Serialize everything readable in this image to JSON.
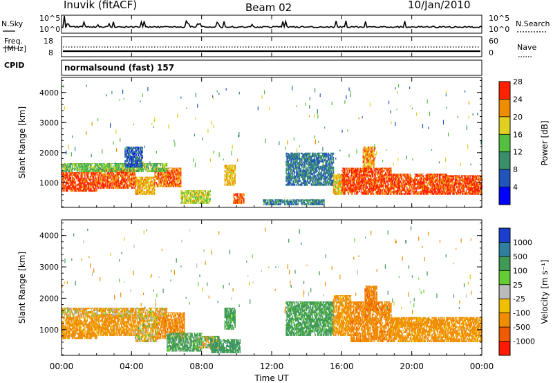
{
  "header": {
    "station": "Inuvik (fitACF)",
    "beam": "Beam 02",
    "date": "10/Jan/2010"
  },
  "noise_panel": {
    "left_label": "N.Sky",
    "left_top": "10^5",
    "left_bottom": "10^0",
    "right_top": "10^5",
    "right_bottom": "10^0",
    "right_label": "N.Search"
  },
  "freq_panel": {
    "left_label_1": "Freq.",
    "left_label_2": "[MHz]",
    "left_top": "18",
    "left_bottom": "8",
    "right_top": "60",
    "right_bottom": "0",
    "right_label": "Nave"
  },
  "cpid": {
    "label": "CPID",
    "value": "normalsound (fast) 157"
  },
  "chart_data": [
    {
      "type": "heatmap",
      "title": "",
      "ylabel": "Slant Range [km]",
      "ylim": [
        180,
        4500
      ],
      "yticks": [
        1000,
        2000,
        3000,
        4000
      ],
      "xlim": [
        "00:00",
        "24:00"
      ],
      "colorbar": {
        "label": "Power [dB]",
        "ticks": [
          "4",
          "8",
          "12",
          "16",
          "20",
          "24",
          "28"
        ],
        "range": [
          0,
          30
        ],
        "colors": [
          "#0000ff",
          "#2255bb",
          "#3a8f6a",
          "#55c040",
          "#e0d020",
          "#f08c00",
          "#ff2200"
        ]
      }
    },
    {
      "type": "heatmap",
      "title": "",
      "ylabel": "Slant Range [km]",
      "ylim": [
        180,
        4500
      ],
      "yticks": [
        1000,
        2000,
        3000,
        4000
      ],
      "xlim": [
        "00:00",
        "24:00"
      ],
      "xticks": [
        "00:00",
        "04:00",
        "08:00",
        "12:00",
        "16:00",
        "20:00",
        "00:00"
      ],
      "xlabel": "Time UT",
      "colorbar": {
        "label": "Velocity [m s⁻¹]",
        "ticks": [
          "1000",
          "500",
          "100",
          "25",
          "-25",
          "-100",
          "-500",
          "-1000"
        ],
        "colors": [
          "#1a3fcc",
          "#2f7fa0",
          "#3e9a55",
          "#66cc33",
          "#bbbbbb",
          "#f0c000",
          "#f08c00",
          "#f05a00",
          "#ff1a00"
        ]
      }
    }
  ],
  "bands": {
    "power": [
      {
        "t0": 0.0,
        "t1": 2.0,
        "r0": 700,
        "r1": 1350,
        "v": 27
      },
      {
        "t0": 2.0,
        "t1": 4.2,
        "r0": 800,
        "r1": 1450,
        "v": 26
      },
      {
        "t0": 4.2,
        "t1": 5.3,
        "r0": 600,
        "r1": 1200,
        "v": 22
      },
      {
        "t0": 5.3,
        "t1": 6.8,
        "r0": 850,
        "r1": 1500,
        "v": 25
      },
      {
        "t0": 6.8,
        "t1": 8.5,
        "r0": 300,
        "r1": 750,
        "v": 18
      },
      {
        "t0": 9.3,
        "t1": 9.9,
        "r0": 900,
        "r1": 1600,
        "v": 21
      },
      {
        "t0": 9.8,
        "t1": 10.4,
        "r0": 300,
        "r1": 650,
        "v": 26
      },
      {
        "t0": 11.5,
        "t1": 15.0,
        "r0": 250,
        "r1": 450,
        "v": 10
      },
      {
        "t0": 12.8,
        "t1": 15.5,
        "r0": 900,
        "r1": 2000,
        "v": 9
      },
      {
        "t0": 15.5,
        "t1": 16.0,
        "r0": 600,
        "r1": 1300,
        "v": 20
      },
      {
        "t0": 16.0,
        "t1": 18.8,
        "r0": 600,
        "r1": 1500,
        "v": 27
      },
      {
        "t0": 17.2,
        "t1": 17.9,
        "r0": 1500,
        "r1": 2200,
        "v": 23
      },
      {
        "t0": 18.8,
        "t1": 22.0,
        "r0": 600,
        "r1": 1300,
        "v": 27
      },
      {
        "t0": 22.0,
        "t1": 24.0,
        "r0": 600,
        "r1": 1250,
        "v": 27
      },
      {
        "t0": 0.0,
        "t1": 6.0,
        "r0": 1350,
        "r1": 1650,
        "v": 15
      },
      {
        "t0": 3.6,
        "t1": 4.6,
        "r0": 1500,
        "r1": 2200,
        "v": 7
      }
    ],
    "velocity": [
      {
        "t0": 0.0,
        "t1": 2.0,
        "r0": 700,
        "r1": 1400,
        "v": -150
      },
      {
        "t0": 2.0,
        "t1": 4.2,
        "r0": 800,
        "r1": 1500,
        "v": -150
      },
      {
        "t0": 4.2,
        "t1": 5.5,
        "r0": 600,
        "r1": 1400,
        "v": -60
      },
      {
        "t0": 5.5,
        "t1": 7.0,
        "r0": 700,
        "r1": 1550,
        "v": -200
      },
      {
        "t0": 6.0,
        "t1": 8.0,
        "r0": 300,
        "r1": 900,
        "v": 120
      },
      {
        "t0": 7.8,
        "t1": 9.0,
        "r0": 400,
        "r1": 800,
        "v": 0
      },
      {
        "t0": 8.5,
        "t1": 10.2,
        "r0": 250,
        "r1": 700,
        "v": 200
      },
      {
        "t0": 9.3,
        "t1": 9.9,
        "r0": 1000,
        "r1": 1700,
        "v": 150
      },
      {
        "t0": 12.8,
        "t1": 15.5,
        "r0": 800,
        "r1": 1900,
        "v": 150
      },
      {
        "t0": 15.5,
        "t1": 16.5,
        "r0": 800,
        "r1": 2100,
        "v": -150
      },
      {
        "t0": 16.5,
        "t1": 18.8,
        "r0": 600,
        "r1": 1900,
        "v": -200
      },
      {
        "t0": 17.3,
        "t1": 18.0,
        "r0": 1600,
        "r1": 2400,
        "v": -250
      },
      {
        "t0": 18.8,
        "t1": 24.0,
        "r0": 600,
        "r1": 1400,
        "v": -150
      },
      {
        "t0": 0.0,
        "t1": 6.0,
        "r0": 1400,
        "r1": 1700,
        "v": -70
      }
    ]
  }
}
